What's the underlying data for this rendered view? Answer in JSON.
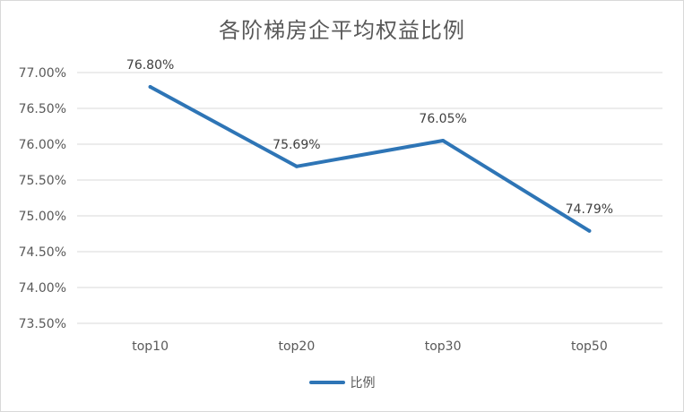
{
  "chart_data": {
    "type": "line",
    "title": "各阶梯房企平均权益比例",
    "categories": [
      "top10",
      "top20",
      "top30",
      "top50"
    ],
    "series": [
      {
        "name": "比例",
        "values": [
          76.8,
          75.69,
          76.05,
          74.79
        ],
        "labels": [
          "76.80%",
          "75.69%",
          "76.05%",
          "74.79%"
        ]
      }
    ],
    "ylim": [
      73.5,
      77.0
    ],
    "yticks": [
      73.5,
      74.0,
      74.5,
      75.0,
      75.5,
      76.0,
      76.5,
      77.0
    ],
    "ytick_labels": [
      "73.50%",
      "74.00%",
      "74.50%",
      "75.00%",
      "75.50%",
      "76.00%",
      "76.50%",
      "77.00%"
    ],
    "grid": true,
    "legend_position": "bottom",
    "colors": {
      "series": "#2e75b6",
      "grid": "#d9d9d9",
      "text": "#595959"
    }
  }
}
